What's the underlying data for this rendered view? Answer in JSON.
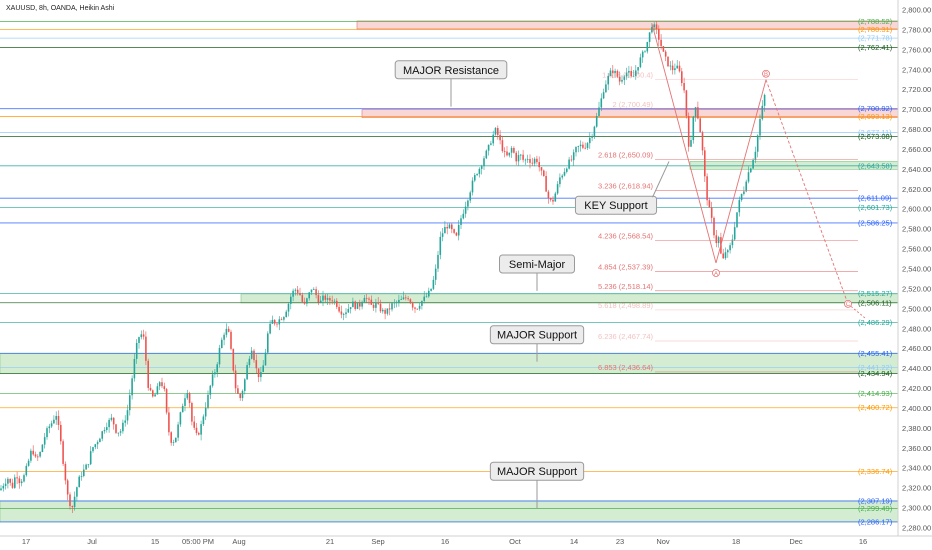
{
  "header": {
    "title": "XAUUSD, 8h, OANDA, Heikin Ashi"
  },
  "colors": {
    "bull": "#26a69a",
    "bear": "#ef5350",
    "zone_green": "#9fd49b",
    "zone_red": "#f4a6a6",
    "fib": "#e57373",
    "orange": "#ff9800",
    "blue": "#2962ff",
    "teal": "#26a69a"
  },
  "chart_data": {
    "type": "candlestick",
    "title": "XAUUSD, 8h, OANDA, Heikin Ashi",
    "ylim": [
      2270,
      2810
    ],
    "yticks": [
      2280,
      2300,
      2320,
      2340,
      2360,
      2380,
      2400,
      2420,
      2440,
      2460,
      2480,
      2500,
      2520,
      2540,
      2560,
      2580,
      2600,
      2620,
      2640,
      2660,
      2680,
      2700,
      2720,
      2740,
      2760,
      2780,
      2800
    ],
    "xticks": [
      "17",
      "Jul",
      "15",
      "05:00 PM",
      "Aug",
      "21",
      "Sep",
      "16",
      "Oct",
      "14",
      "23",
      "Nov",
      "18",
      "Dec",
      "16"
    ],
    "price_anchors": [
      [
        0,
        2318
      ],
      [
        4,
        2325
      ],
      [
        8,
        2330
      ],
      [
        12,
        2320
      ],
      [
        16,
        2335
      ],
      [
        20,
        2326
      ],
      [
        24,
        2332
      ],
      [
        28,
        2345
      ],
      [
        32,
        2360
      ],
      [
        36,
        2348
      ],
      [
        40,
        2355
      ],
      [
        44,
        2370
      ],
      [
        48,
        2380
      ],
      [
        52,
        2386
      ],
      [
        56,
        2395
      ],
      [
        60,
        2372
      ],
      [
        64,
        2340
      ],
      [
        68,
        2310
      ],
      [
        72,
        2300
      ],
      [
        76,
        2318
      ],
      [
        80,
        2332
      ],
      [
        84,
        2338
      ],
      [
        88,
        2345
      ],
      [
        92,
        2360
      ],
      [
        96,
        2365
      ],
      [
        100,
        2372
      ],
      [
        104,
        2380
      ],
      [
        108,
        2386
      ],
      [
        112,
        2390
      ],
      [
        116,
        2378
      ],
      [
        120,
        2376
      ],
      [
        124,
        2386
      ],
      [
        128,
        2400
      ],
      [
        132,
        2430
      ],
      [
        136,
        2460
      ],
      [
        140,
        2476
      ],
      [
        144,
        2470
      ],
      [
        148,
        2424
      ],
      [
        152,
        2410
      ],
      [
        156,
        2415
      ],
      [
        160,
        2428
      ],
      [
        164,
        2420
      ],
      [
        168,
        2380
      ],
      [
        172,
        2365
      ],
      [
        176,
        2372
      ],
      [
        180,
        2392
      ],
      [
        184,
        2410
      ],
      [
        188,
        2420
      ],
      [
        192,
        2386
      ],
      [
        196,
        2372
      ],
      [
        200,
        2378
      ],
      [
        204,
        2396
      ],
      [
        208,
        2412
      ],
      [
        212,
        2430
      ],
      [
        216,
        2440
      ],
      [
        220,
        2462
      ],
      [
        224,
        2476
      ],
      [
        228,
        2480
      ],
      [
        232,
        2450
      ],
      [
        236,
        2418
      ],
      [
        240,
        2410
      ],
      [
        244,
        2424
      ],
      [
        248,
        2448
      ],
      [
        252,
        2462
      ],
      [
        256,
        2440
      ],
      [
        260,
        2430
      ],
      [
        264,
        2446
      ],
      [
        268,
        2476
      ],
      [
        272,
        2488
      ],
      [
        276,
        2486
      ],
      [
        280,
        2490
      ],
      [
        284,
        2494
      ],
      [
        288,
        2504
      ],
      [
        292,
        2516
      ],
      [
        296,
        2520
      ],
      [
        300,
        2514
      ],
      [
        304,
        2502
      ],
      [
        308,
        2512
      ],
      [
        312,
        2522
      ],
      [
        316,
        2514
      ],
      [
        320,
        2506
      ],
      [
        324,
        2512
      ],
      [
        328,
        2508
      ],
      [
        332,
        2510
      ],
      [
        336,
        2506
      ],
      [
        340,
        2498
      ],
      [
        344,
        2496
      ],
      [
        348,
        2500
      ],
      [
        352,
        2506
      ],
      [
        356,
        2502
      ],
      [
        360,
        2504
      ],
      [
        364,
        2514
      ],
      [
        368,
        2508
      ],
      [
        372,
        2502
      ],
      [
        376,
        2505
      ],
      [
        380,
        2500
      ],
      [
        384,
        2496
      ],
      [
        388,
        2498
      ],
      [
        392,
        2504
      ],
      [
        396,
        2506
      ],
      [
        400,
        2508
      ],
      [
        404,
        2510
      ],
      [
        408,
        2512
      ],
      [
        412,
        2504
      ],
      [
        416,
        2500
      ],
      [
        420,
        2506
      ],
      [
        424,
        2510
      ],
      [
        428,
        2514
      ],
      [
        432,
        2522
      ],
      [
        436,
        2540
      ],
      [
        440,
        2570
      ],
      [
        444,
        2580
      ],
      [
        448,
        2584
      ],
      [
        452,
        2578
      ],
      [
        456,
        2570
      ],
      [
        460,
        2588
      ],
      [
        464,
        2600
      ],
      [
        468,
        2612
      ],
      [
        472,
        2625
      ],
      [
        476,
        2636
      ],
      [
        480,
        2642
      ],
      [
        484,
        2652
      ],
      [
        488,
        2660
      ],
      [
        492,
        2672
      ],
      [
        496,
        2680
      ],
      [
        500,
        2668
      ],
      [
        504,
        2656
      ],
      [
        508,
        2652
      ],
      [
        512,
        2662
      ],
      [
        516,
        2650
      ],
      [
        520,
        2655
      ],
      [
        524,
        2648
      ],
      [
        528,
        2652
      ],
      [
        532,
        2646
      ],
      [
        536,
        2652
      ],
      [
        540,
        2640
      ],
      [
        544,
        2630
      ],
      [
        548,
        2612
      ],
      [
        552,
        2606
      ],
      [
        556,
        2618
      ],
      [
        560,
        2632
      ],
      [
        564,
        2638
      ],
      [
        568,
        2646
      ],
      [
        572,
        2650
      ],
      [
        576,
        2660
      ],
      [
        580,
        2664
      ],
      [
        584,
        2662
      ],
      [
        588,
        2668
      ],
      [
        592,
        2676
      ],
      [
        596,
        2690
      ],
      [
        600,
        2705
      ],
      [
        604,
        2722
      ],
      [
        608,
        2732
      ],
      [
        612,
        2740
      ],
      [
        616,
        2736
      ],
      [
        620,
        2728
      ],
      [
        624,
        2736
      ],
      [
        628,
        2738
      ],
      [
        632,
        2730
      ],
      [
        636,
        2740
      ],
      [
        640,
        2750
      ],
      [
        644,
        2758
      ],
      [
        648,
        2770
      ],
      [
        652,
        2786
      ],
      [
        656,
        2780
      ],
      [
        660,
        2768
      ],
      [
        664,
        2754
      ],
      [
        668,
        2746
      ],
      [
        672,
        2740
      ],
      [
        676,
        2744
      ],
      [
        680,
        2736
      ],
      [
        684,
        2720
      ],
      [
        686,
        2700
      ],
      [
        688,
        2672
      ],
      [
        690,
        2654
      ],
      [
        692,
        2680
      ],
      [
        694,
        2700
      ],
      [
        696,
        2706
      ],
      [
        698,
        2692
      ],
      [
        700,
        2680
      ],
      [
        702,
        2664
      ],
      [
        704,
        2640
      ],
      [
        706,
        2618
      ],
      [
        708,
        2606
      ],
      [
        710,
        2596
      ],
      [
        712,
        2588
      ],
      [
        714,
        2576
      ],
      [
        716,
        2566
      ],
      [
        718,
        2576
      ],
      [
        720,
        2560
      ],
      [
        722,
        2548
      ],
      [
        724,
        2550
      ],
      [
        726,
        2560
      ],
      [
        728,
        2556
      ],
      [
        730,
        2562
      ],
      [
        732,
        2568
      ],
      [
        734,
        2580
      ],
      [
        736,
        2592
      ],
      [
        738,
        2602
      ],
      [
        740,
        2610
      ],
      [
        742,
        2616
      ],
      [
        744,
        2620
      ],
      [
        746,
        2630
      ],
      [
        748,
        2636
      ],
      [
        750,
        2640
      ],
      [
        752,
        2648
      ],
      [
        754,
        2654
      ],
      [
        756,
        2662
      ],
      [
        758,
        2676
      ],
      [
        760,
        2690
      ],
      [
        762,
        2700
      ],
      [
        764,
        2712
      ],
      [
        766,
        2718
      ]
    ],
    "zones": [
      {
        "name": "upper-red-zone",
        "from": 2781,
        "to": 2789,
        "color": "red",
        "start_x": 357
      },
      {
        "name": "major-resistance-zone",
        "from": 2692,
        "to": 2700,
        "color": "red",
        "start_x": 362
      },
      {
        "name": "key-support-zone",
        "from": 2640,
        "to": 2648,
        "color": "green",
        "start_x": 690
      },
      {
        "name": "semi-major-zone",
        "from": 2506,
        "to": 2515,
        "color": "green",
        "start_x": 241
      },
      {
        "name": "major-support-zone-1",
        "from": 2435,
        "to": 2455,
        "color": "green",
        "start_x": 0
      },
      {
        "name": "major-support-zone-2",
        "from": 2286,
        "to": 2307,
        "color": "green",
        "start_x": 0
      }
    ],
    "levels": [
      {
        "value": 2788.52,
        "label": "(2,788.52)",
        "color": "#4caf50"
      },
      {
        "value": 2780.31,
        "label": "(2,780.31)",
        "color": "#ff9800"
      },
      {
        "value": 2771.78,
        "label": "(2,771.78)",
        "color": "#90caf9"
      },
      {
        "value": 2762.41,
        "label": "(2,762.41)",
        "color": "#1b5e20"
      },
      {
        "value": 2700.92,
        "label": "(2,700.92)",
        "color": "#2962ff"
      },
      {
        "value": 2693.13,
        "label": "(2,693.13)",
        "color": "#ff9800"
      },
      {
        "value": 2677.11,
        "label": "(2,677.11)",
        "color": "#90caf9"
      },
      {
        "value": 2673.08,
        "label": "(2,673.08)",
        "color": "#1b5e20"
      },
      {
        "value": 2643.58,
        "label": "(2,643.58)",
        "color": "#26a69a"
      },
      {
        "value": 2611.09,
        "label": "(2,611.09)",
        "color": "#2962ff"
      },
      {
        "value": 2601.73,
        "label": "(2,601.73)",
        "color": "#26a69a"
      },
      {
        "value": 2586.25,
        "label": "(2,586.25)",
        "color": "#2962ff"
      },
      {
        "value": 2515.27,
        "label": "(2,515.27)",
        "color": "#26a69a"
      },
      {
        "value": 2506.11,
        "label": "(2,506.11)",
        "color": "#1b5e20"
      },
      {
        "value": 2486.29,
        "label": "(2,486.29)",
        "color": "#26a69a"
      },
      {
        "value": 2455.41,
        "label": "(2,455.41)",
        "color": "#2962ff"
      },
      {
        "value": 2441.22,
        "label": "(2,441.22)",
        "color": "#90caf9"
      },
      {
        "value": 2434.94,
        "label": "(2,434.94)",
        "color": "#1b5e20"
      },
      {
        "value": 2414.93,
        "label": "(2,414.93)",
        "color": "#4caf50"
      },
      {
        "value": 2400.72,
        "label": "(2,400.72)",
        "color": "#ff9800"
      },
      {
        "value": 2336.74,
        "label": "(2,336.74)",
        "color": "#ff9800"
      },
      {
        "value": 2307.19,
        "label": "(2,307.19)",
        "color": "#2962ff"
      },
      {
        "value": 2299.49,
        "label": "(2,299.49)",
        "color": "#4caf50"
      },
      {
        "value": 2286.17,
        "label": "(2,286.17)",
        "color": "#2962ff"
      }
    ],
    "fib_levels": [
      {
        "value": 2730.4,
        "label": "1.618 (2,730.4)",
        "faded": true
      },
      {
        "value": 2700.49,
        "label": "2 (2,700.49)",
        "faded": true
      },
      {
        "value": 2650.09,
        "label": "2.618 (2,650.09)",
        "faded": false
      },
      {
        "value": 2618.94,
        "label": "3.236 (2,618.94)",
        "faded": false
      },
      {
        "value": 2568.54,
        "label": "4.236 (2,568.54)",
        "faded": false
      },
      {
        "value": 2537.39,
        "label": "4.854 (2,537.39)",
        "faded": false
      },
      {
        "value": 2518.14,
        "label": "5.236 (2,518.14)",
        "faded": false
      },
      {
        "value": 2498.89,
        "label": "5.618 (2,498.89)",
        "faded": true
      },
      {
        "value": 2467.74,
        "label": "6.236 (2,467.74)",
        "faded": true
      },
      {
        "value": 2436.64,
        "label": "6.853 (2,436.64)",
        "faded": false
      }
    ],
    "projection": {
      "points": [
        [
          652,
          2786
        ],
        [
          716,
          2546
        ],
        [
          766,
          2730
        ],
        [
          848,
          2505
        ]
      ],
      "labels": [
        "A",
        "B",
        "C"
      ]
    },
    "callouts": [
      {
        "name": "major-resistance-callout",
        "text": "MAJOR Resistance",
        "price": 2740,
        "pointer_price": 2703
      },
      {
        "name": "key-support-callout",
        "text": "KEY Support",
        "price": 2604,
        "pointer_price": 2648
      },
      {
        "name": "semi-major-callout",
        "text": "Semi-Major",
        "price": 2545,
        "pointer_price": 2518
      },
      {
        "name": "major-support-callout-1",
        "text": "MAJOR Support",
        "price": 2474,
        "pointer_price": 2447
      },
      {
        "name": "major-support-callout-2",
        "text": "MAJOR Support",
        "price": 2337,
        "pointer_price": 2300
      }
    ]
  }
}
